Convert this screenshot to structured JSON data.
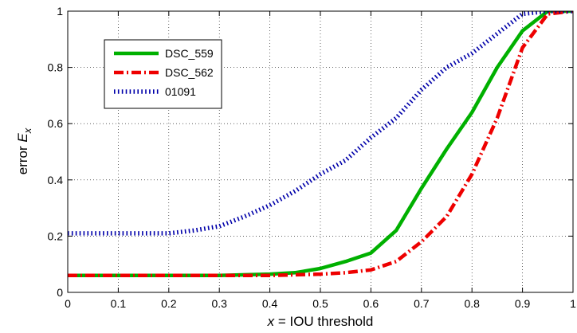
{
  "chart_data": {
    "type": "line",
    "xlabel": {
      "var": "x",
      "rest": " = IOU threshold"
    },
    "ylabel": {
      "prefix": "error ",
      "var": "E",
      "sub": "x"
    },
    "xlim": [
      0,
      1
    ],
    "ylim": [
      0,
      1
    ],
    "x_ticks": [
      0,
      0.1,
      0.2,
      0.3,
      0.4,
      0.5,
      0.6,
      0.7,
      0.8,
      0.9,
      1
    ],
    "x_tick_labels": [
      "0",
      "0.1",
      "0.2",
      "0.3",
      "0.4",
      "0.5",
      "0.6",
      "0.7",
      "0.8",
      "0.9",
      "1"
    ],
    "y_ticks": [
      0,
      0.2,
      0.4,
      0.6,
      0.8,
      1
    ],
    "y_tick_labels": [
      "0",
      "0.2",
      "0.4",
      "0.6",
      "0.8",
      "1"
    ],
    "grid": true,
    "legend_position": "top-left",
    "series": [
      {
        "name": "DSC_559",
        "color": "#00b000",
        "style": "solid",
        "x": [
          0,
          0.1,
          0.2,
          0.3,
          0.4,
          0.45,
          0.5,
          0.55,
          0.6,
          0.65,
          0.7,
          0.75,
          0.8,
          0.85,
          0.9,
          0.95,
          1.0
        ],
        "y": [
          0.06,
          0.06,
          0.06,
          0.06,
          0.065,
          0.07,
          0.085,
          0.11,
          0.14,
          0.22,
          0.37,
          0.51,
          0.64,
          0.8,
          0.93,
          1.0,
          1.0
        ]
      },
      {
        "name": "DSC_562",
        "color": "#ee0000",
        "style": "dashdot",
        "x": [
          0,
          0.1,
          0.2,
          0.3,
          0.4,
          0.5,
          0.55,
          0.6,
          0.65,
          0.7,
          0.75,
          0.8,
          0.85,
          0.9,
          0.95,
          1.0
        ],
        "y": [
          0.06,
          0.06,
          0.06,
          0.06,
          0.06,
          0.065,
          0.07,
          0.08,
          0.11,
          0.18,
          0.27,
          0.42,
          0.62,
          0.87,
          0.99,
          1.0
        ]
      },
      {
        "name": "01091",
        "color": "#0000aa",
        "style": "dotted",
        "x": [
          0,
          0.1,
          0.2,
          0.25,
          0.3,
          0.35,
          0.4,
          0.45,
          0.5,
          0.55,
          0.6,
          0.65,
          0.7,
          0.75,
          0.8,
          0.85,
          0.9,
          0.95,
          1.0
        ],
        "y": [
          0.21,
          0.21,
          0.21,
          0.22,
          0.235,
          0.27,
          0.31,
          0.36,
          0.42,
          0.47,
          0.55,
          0.62,
          0.72,
          0.8,
          0.85,
          0.92,
          0.99,
          1.0,
          1.0
        ]
      }
    ]
  }
}
